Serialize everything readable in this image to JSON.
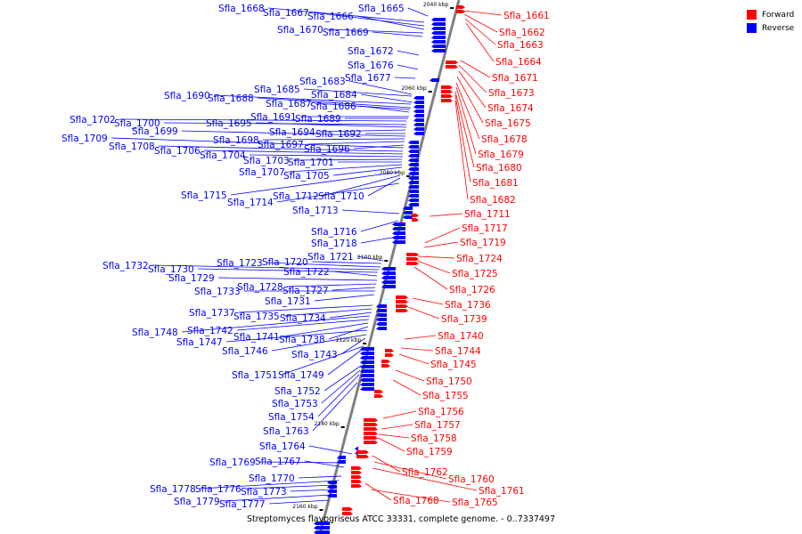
{
  "caption": "Streptomyces flavogriseus ATCC 33331, complete genome. - 0..7337497",
  "legend": [
    {
      "label": "Forward",
      "color": "#ff0000"
    },
    {
      "label": "Reverse",
      "color": "#0000ff"
    }
  ],
  "colors": {
    "forward": "#ff0000",
    "reverse": "#0000ff",
    "backbone": "#808080"
  },
  "scale_labels": [
    "2040 kbp",
    "2060 kbp",
    "2080 kbp",
    "2100 kbp",
    "2120 kbp",
    "2140 kbp",
    "2160 kbp"
  ],
  "forward_genes": [
    "Sfla_1661",
    "Sfla_1662",
    "Sfla_1663",
    "Sfla_1664",
    "Sfla_1671",
    "Sfla_1673",
    "Sfla_1674",
    "Sfla_1675",
    "Sfla_1678",
    "Sfla_1679",
    "Sfla_1680",
    "Sfla_1681",
    "Sfla_1682",
    "Sfla_1711",
    "Sfla_1717",
    "Sfla_1719",
    "Sfla_1724",
    "Sfla_1725",
    "Sfla_1726",
    "Sfla_1736",
    "Sfla_1739",
    "Sfla_1740",
    "Sfla_1744",
    "Sfla_1745",
    "Sfla_1750",
    "Sfla_1755",
    "Sfla_1756",
    "Sfla_1757",
    "Sfla_1758",
    "Sfla_1759",
    "Sfla_1762",
    "Sfla_1760",
    "Sfla_1761",
    "Sfla_1768",
    "Sfla_1765"
  ],
  "reverse_genes": [
    "Sfla_1668",
    "Sfla_1667",
    "Sfla_1666",
    "Sfla_1665",
    "Sfla_1670",
    "Sfla_1669",
    "Sfla_1672",
    "Sfla_1676",
    "Sfla_1677",
    "Sfla_1683",
    "Sfla_1685",
    "Sfla_1684",
    "Sfla_1690",
    "Sfla_1688",
    "Sfla_1687",
    "Sfla_1686",
    "Sfla_1691",
    "Sfla_1689",
    "Sfla_1702",
    "Sfla_1700",
    "Sfla_1695",
    "Sfla_1694",
    "Sfla_1692",
    "Sfla_1699",
    "Sfla_1698",
    "Sfla_1697",
    "Sfla_1696",
    "Sfla_1709",
    "Sfla_1708",
    "Sfla_1706",
    "Sfla_1704",
    "Sfla_1703",
    "Sfla_1701",
    "Sfla_1707",
    "Sfla_1705",
    "Sfla_1715",
    "Sfla_1712",
    "Sfla_1710",
    "Sfla_1714",
    "Sfla_1713",
    "Sfla_1716",
    "Sfla_1718",
    "Sfla_1721",
    "Sfla_1720",
    "Sfla_1723",
    "Sfla_1732",
    "Sfla_1730",
    "Sfla_1722",
    "Sfla_1729",
    "Sfla_1728",
    "Sfla_1727",
    "Sfla_1733",
    "Sfla_1731",
    "Sfla_1737",
    "Sfla_1735",
    "Sfla_1734",
    "Sfla_1748",
    "Sfla_1742",
    "Sfla_1741",
    "Sfla_1738",
    "Sfla_1747",
    "Sfla_1746",
    "Sfla_1743",
    "Sfla_1751",
    "Sfla_1749",
    "Sfla_1752",
    "Sfla_1753",
    "Sfla_1754",
    "Sfla_1763",
    "Sfla_1764",
    "Sfla_1769",
    "Sfla_1767",
    "Sfla_1770",
    "Sfla_1778",
    "Sfla_1776",
    "Sfla_1773",
    "Sfla_1779",
    "Sfla_1777"
  ]
}
